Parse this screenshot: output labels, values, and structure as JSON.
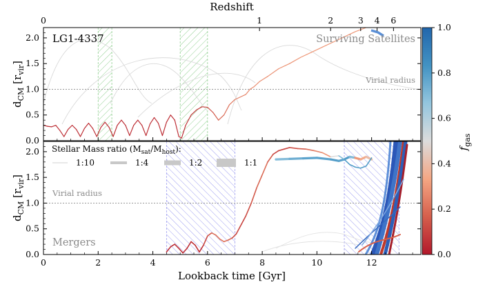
{
  "chart_data": [
    {
      "panel": "top",
      "type": "line",
      "top_axis": {
        "label": "Redshift",
        "ticks": [
          0,
          1,
          2,
          3,
          4,
          6
        ]
      },
      "ylabel_main": "d",
      "ylabel_sub": "CM",
      "ylabel_unit": "[r",
      "ylabel_unit_sub": "vir",
      "ylabel_close": "]",
      "xlim": [
        0,
        13.8
      ],
      "ylim": [
        0,
        2.2
      ],
      "yticks": [
        0.0,
        0.5,
        1.0,
        1.5,
        2.0
      ],
      "ytick_labels": [
        "0.0",
        "0.5",
        "1.0",
        "1.5",
        "2.0"
      ],
      "halo_label": "LG1-4337",
      "panel_label": "Surviving Satellites",
      "virial_label": "Virial radius",
      "virial_y": 1.0,
      "shaded_intervals": [
        [
          2.0,
          2.5
        ],
        [
          5.0,
          6.0
        ]
      ],
      "main_series": {
        "x": [
          0.0,
          0.15,
          0.3,
          0.45,
          0.6,
          0.75,
          0.9,
          1.05,
          1.2,
          1.35,
          1.5,
          1.65,
          1.8,
          1.95,
          2.1,
          2.25,
          2.4,
          2.55,
          2.7,
          2.85,
          3.0,
          3.15,
          3.3,
          3.45,
          3.6,
          3.75,
          3.9,
          4.05,
          4.2,
          4.35,
          4.5,
          4.65,
          4.8,
          4.95,
          5.05,
          5.2,
          5.4,
          5.6,
          5.8,
          6.0,
          6.2,
          6.4,
          6.6,
          6.8,
          7.0,
          7.2,
          7.4,
          7.55,
          7.7,
          7.9,
          8.2,
          8.6,
          9.0,
          9.4,
          9.8,
          10.2,
          10.6,
          11.0,
          11.4,
          11.8
        ],
        "y": [
          0.3,
          0.28,
          0.27,
          0.3,
          0.2,
          0.08,
          0.22,
          0.3,
          0.22,
          0.08,
          0.24,
          0.34,
          0.24,
          0.08,
          0.26,
          0.36,
          0.26,
          0.08,
          0.3,
          0.4,
          0.3,
          0.1,
          0.3,
          0.4,
          0.3,
          0.1,
          0.33,
          0.45,
          0.34,
          0.1,
          0.36,
          0.5,
          0.4,
          0.08,
          0.05,
          0.3,
          0.5,
          0.6,
          0.66,
          0.65,
          0.55,
          0.4,
          0.5,
          0.7,
          0.8,
          0.85,
          0.9,
          1.0,
          1.05,
          1.15,
          1.25,
          1.4,
          1.5,
          1.62,
          1.72,
          1.82,
          1.92,
          2.02,
          2.12,
          2.2
        ],
        "fgas": [
          0.05,
          0.05,
          0.05,
          0.05,
          0.05,
          0.05,
          0.05,
          0.05,
          0.05,
          0.05,
          0.05,
          0.05,
          0.05,
          0.05,
          0.05,
          0.05,
          0.05,
          0.05,
          0.05,
          0.05,
          0.05,
          0.05,
          0.05,
          0.05,
          0.05,
          0.05,
          0.05,
          0.05,
          0.05,
          0.05,
          0.05,
          0.05,
          0.05,
          0.05,
          0.05,
          0.06,
          0.07,
          0.08,
          0.1,
          0.12,
          0.15,
          0.18,
          0.2,
          0.22,
          0.24,
          0.25,
          0.26,
          0.27,
          0.28,
          0.28,
          0.28,
          0.29,
          0.29,
          0.3,
          0.3,
          0.3,
          0.3,
          0.3,
          0.3,
          0.3
        ]
      }
    },
    {
      "panel": "bottom",
      "type": "line",
      "xlabel": "Lookback time [Gyr]",
      "ylabel_main": "d",
      "ylabel_sub": "CM",
      "ylabel_unit": "[r",
      "ylabel_unit_sub": "vir",
      "ylabel_close": "]",
      "xlim": [
        0,
        13.8
      ],
      "ylim": [
        0,
        2.2
      ],
      "xticks": [
        0,
        2,
        4,
        6,
        8,
        10,
        12
      ],
      "yticks": [
        0.0,
        0.5,
        1.0,
        1.5,
        2.0
      ],
      "ytick_labels": [
        "0.0",
        "0.5",
        "1.0",
        "1.5",
        "2.0"
      ],
      "panel_label": "Mergers",
      "virial_label": "Virial radius",
      "virial_y": 1.0,
      "shaded_intervals": [
        [
          4.5,
          7.0
        ],
        [
          11.0,
          13.0
        ]
      ],
      "legend": {
        "title_pre": "Stellar Mass ratio (M",
        "title_sub1": "sat",
        "title_mid": "/M",
        "title_sub2": "host",
        "title_post": "):",
        "entries": [
          "1:10",
          "1:4",
          "1:2",
          "1:1"
        ]
      },
      "main_series": {
        "x": [
          4.5,
          4.65,
          4.8,
          4.95,
          5.1,
          5.25,
          5.4,
          5.55,
          5.7,
          5.85,
          6.0,
          6.15,
          6.3,
          6.45,
          6.6,
          6.75,
          6.9,
          7.05,
          7.2,
          7.4,
          7.6,
          7.8,
          8.0,
          8.2,
          8.4,
          8.6,
          8.8,
          9.0,
          9.3,
          9.6,
          9.9,
          10.2,
          10.5,
          10.8,
          11.0,
          11.2,
          11.4,
          11.6,
          11.8,
          12.0
        ],
        "y": [
          0.05,
          0.15,
          0.2,
          0.12,
          0.03,
          0.12,
          0.25,
          0.18,
          0.05,
          0.18,
          0.36,
          0.42,
          0.38,
          0.3,
          0.25,
          0.28,
          0.32,
          0.4,
          0.55,
          0.75,
          1.0,
          1.3,
          1.55,
          1.8,
          1.95,
          2.02,
          2.05,
          2.08,
          2.06,
          2.05,
          2.02,
          1.98,
          1.9,
          1.92,
          1.85,
          1.75,
          1.7,
          1.68,
          1.72,
          1.88
        ],
        "fgas": [
          0.05,
          0.05,
          0.05,
          0.05,
          0.05,
          0.05,
          0.05,
          0.05,
          0.05,
          0.1,
          0.15,
          0.2,
          0.22,
          0.22,
          0.2,
          0.18,
          0.12,
          0.1,
          0.1,
          0.12,
          0.15,
          0.18,
          0.2,
          0.15,
          0.1,
          0.1,
          0.1,
          0.12,
          0.15,
          0.2,
          0.25,
          0.3,
          0.5,
          0.7,
          0.8,
          0.8,
          0.8,
          0.8,
          0.8,
          0.85
        ]
      },
      "second_series": {
        "x": [
          8.5,
          9.0,
          9.5,
          10.0,
          10.5,
          10.8,
          11.0,
          11.2,
          11.4,
          11.6,
          11.8,
          12.0
        ],
        "y": [
          1.85,
          1.86,
          1.87,
          1.88,
          1.85,
          1.82,
          1.85,
          1.9,
          1.88,
          1.85,
          1.9,
          1.85
        ],
        "fgas": [
          0.7,
          0.75,
          0.78,
          0.78,
          0.8,
          0.78,
          0.8,
          0.7,
          0.3,
          0.35,
          0.4,
          0.5
        ]
      }
    }
  ],
  "colorbar": {
    "label_main": "f",
    "label_sub": "gas",
    "ticks": [
      0.0,
      0.2,
      0.4,
      0.6,
      0.8,
      1.0
    ],
    "tick_labels": [
      "0.0",
      "0.2",
      "0.4",
      "0.6",
      "0.8",
      "1.0"
    ],
    "colors": [
      "#b2182b",
      "#d6604d",
      "#f4a582",
      "#dcdcdc",
      "#92c5de",
      "#4393c3",
      "#2166ac"
    ]
  }
}
